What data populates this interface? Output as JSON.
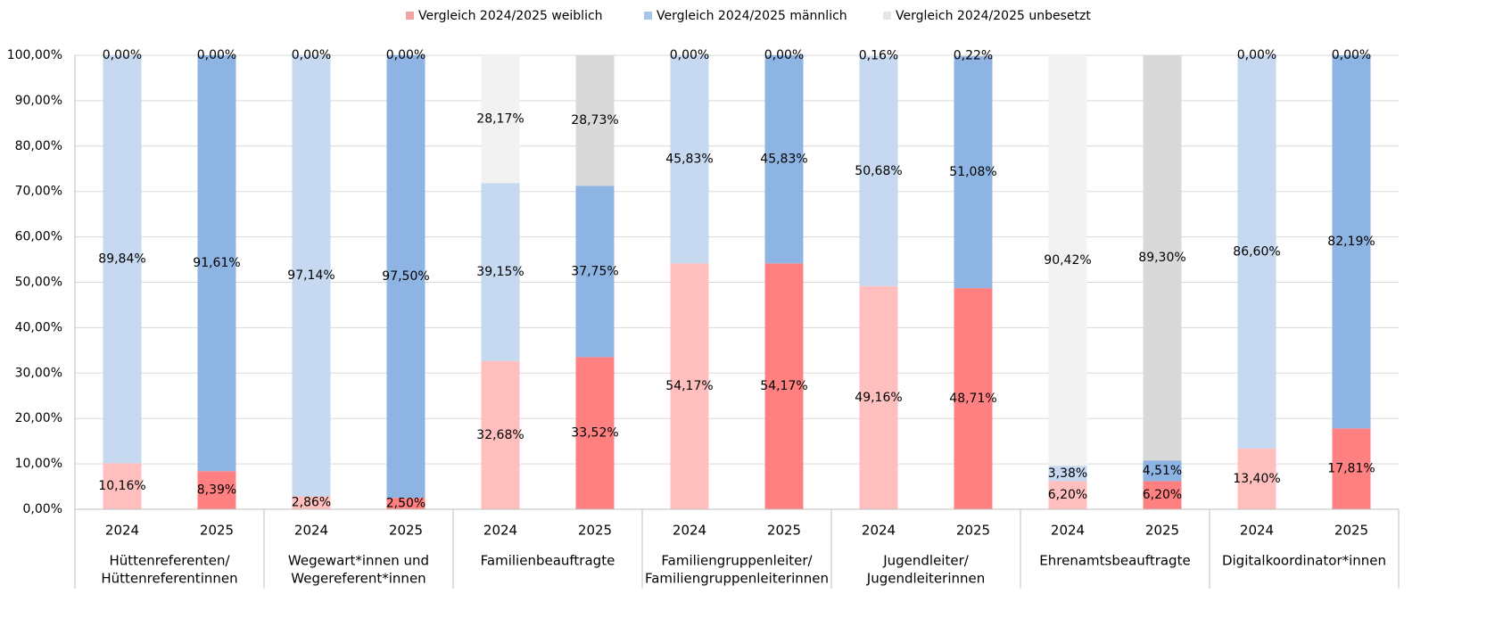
{
  "chart_data": {
    "type": "stacked_bar",
    "categories": [
      "2024",
      "2025",
      "2024",
      "2025",
      "2024",
      "2025",
      "2024",
      "2025",
      "2024",
      "2025",
      "2024",
      "2025",
      "2024",
      "2025"
    ],
    "groups": [
      {
        "lines": [
          "Hüttenreferenten/",
          "Hüttenreferentinnen"
        ]
      },
      {
        "lines": [
          "Wegewart*innen und",
          "Wegereferent*innen"
        ]
      },
      {
        "lines": [
          "Familienbeauftragte"
        ]
      },
      {
        "lines": [
          "Familiengruppenleiter/",
          "Familiengruppenleiterinnen"
        ]
      },
      {
        "lines": [
          "Jugendleiter/",
          "Jugendleiterinnen"
        ]
      },
      {
        "lines": [
          "Ehrenamtsbeauftragte"
        ]
      },
      {
        "lines": [
          "Digitalkoordinator*innen"
        ]
      }
    ],
    "series": [
      {
        "name": "Vergleich 2024/2025 weiblich",
        "color": "#f4a3a3",
        "colors": [
          "#ffbfbf",
          "#ff8080"
        ],
        "values": [
          10.16,
          8.39,
          2.86,
          2.5,
          32.68,
          33.52,
          54.17,
          54.17,
          49.16,
          48.71,
          6.2,
          6.2,
          13.4,
          17.81
        ],
        "value_labels": [
          "10,16%",
          "8,39%",
          "2,86%",
          "2,50%",
          "32,68%",
          "33,52%",
          "54,17%",
          "54,17%",
          "49,16%",
          "48,71%",
          "6,20%",
          "6,20%",
          "13,40%",
          "17,81%"
        ]
      },
      {
        "name": "Vergleich 2024/2025 männlich",
        "color": "#a9c5ea",
        "colors": [
          "#c6d9f1",
          "#8eb4e3"
        ],
        "values": [
          89.84,
          91.61,
          97.14,
          97.5,
          39.15,
          37.75,
          45.83,
          45.83,
          50.68,
          51.08,
          3.38,
          4.51,
          86.6,
          82.19
        ],
        "value_labels": [
          "89,84%",
          "91,61%",
          "97,14%",
          "97,50%",
          "39,15%",
          "37,75%",
          "45,83%",
          "45,83%",
          "50,68%",
          "51,08%",
          "3,38%",
          "4,51%",
          "86,60%",
          "82,19%"
        ]
      },
      {
        "name": "Vergleich 2024/2025 unbesetzt",
        "color": "#e6e6e6",
        "colors": [
          "#f2f2f2",
          "#d9d9d9"
        ],
        "values": [
          0,
          0,
          0,
          0,
          28.17,
          28.73,
          0,
          0,
          0.16,
          0.22,
          90.42,
          89.3,
          0,
          0
        ],
        "value_labels": [
          "0,00%",
          "0,00%",
          "0,00%",
          "0,00%",
          "28,17%",
          "28,73%",
          "0,00%",
          "0,00%",
          "0,16%",
          "0,22%",
          "90,42%",
          "89,30%",
          "0,00%",
          "0,00%"
        ]
      }
    ],
    "ylim": [
      0,
      100
    ],
    "yticks": [
      {
        "value": 0,
        "label": "0,00%"
      },
      {
        "value": 10,
        "label": "10,00%"
      },
      {
        "value": 20,
        "label": "20,00%"
      },
      {
        "value": 30,
        "label": "30,00%"
      },
      {
        "value": 40,
        "label": "40,00%"
      },
      {
        "value": 50,
        "label": "50,00%"
      },
      {
        "value": 60,
        "label": "60,00%"
      },
      {
        "value": 70,
        "label": "70,00%"
      },
      {
        "value": 80,
        "label": "80,00%"
      },
      {
        "value": 90,
        "label": "90,00%"
      },
      {
        "value": 100,
        "label": "100,00%"
      }
    ],
    "grid": true,
    "legend": "top"
  }
}
